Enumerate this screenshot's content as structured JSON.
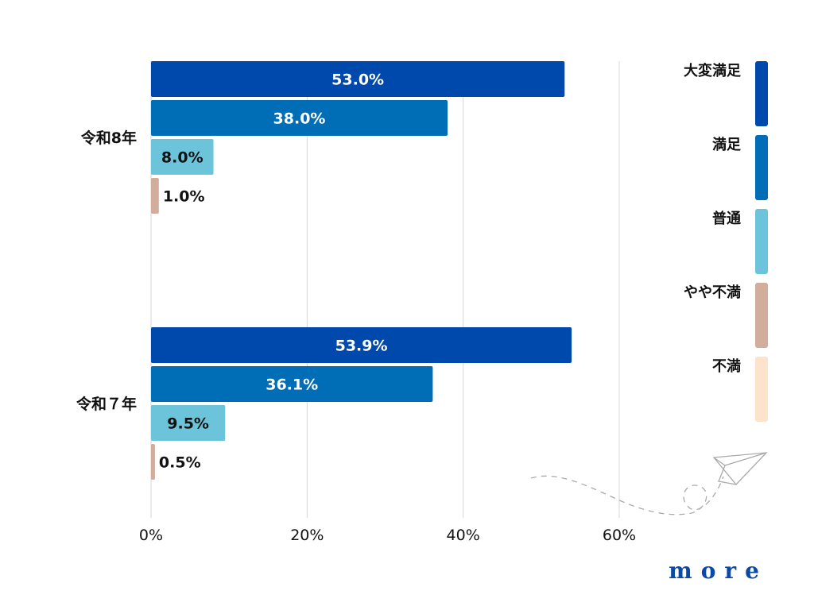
{
  "chart_data": {
    "type": "bar",
    "orientation": "horizontal",
    "categories": [
      "令和8年",
      "令和７年"
    ],
    "series": [
      {
        "name": "大変満足",
        "values": [
          53.0,
          53.9
        ],
        "color": "#0049ac"
      },
      {
        "name": "満足",
        "values": [
          38.0,
          36.1
        ],
        "color": "#006eb7"
      },
      {
        "name": "普通",
        "values": [
          8.0,
          9.5
        ],
        "color": "#6bc4da"
      },
      {
        "name": "やや不満",
        "values": [
          1.0,
          0.5
        ],
        "color": "#d2ad9c"
      },
      {
        "name": "不満",
        "values": [
          0,
          0
        ],
        "color": "#fde3cb"
      }
    ],
    "data_labels": [
      [
        "53.0%",
        "38.0%",
        "8.0%",
        "1.0%"
      ],
      [
        "53.9%",
        "36.1%",
        "9.5%",
        "0.5%"
      ]
    ],
    "x_ticks": [
      "0%",
      "20%",
      "40%",
      "60%"
    ],
    "xlim": [
      0,
      60
    ],
    "grid": true,
    "legend_position": "right"
  },
  "logo_text": "more"
}
